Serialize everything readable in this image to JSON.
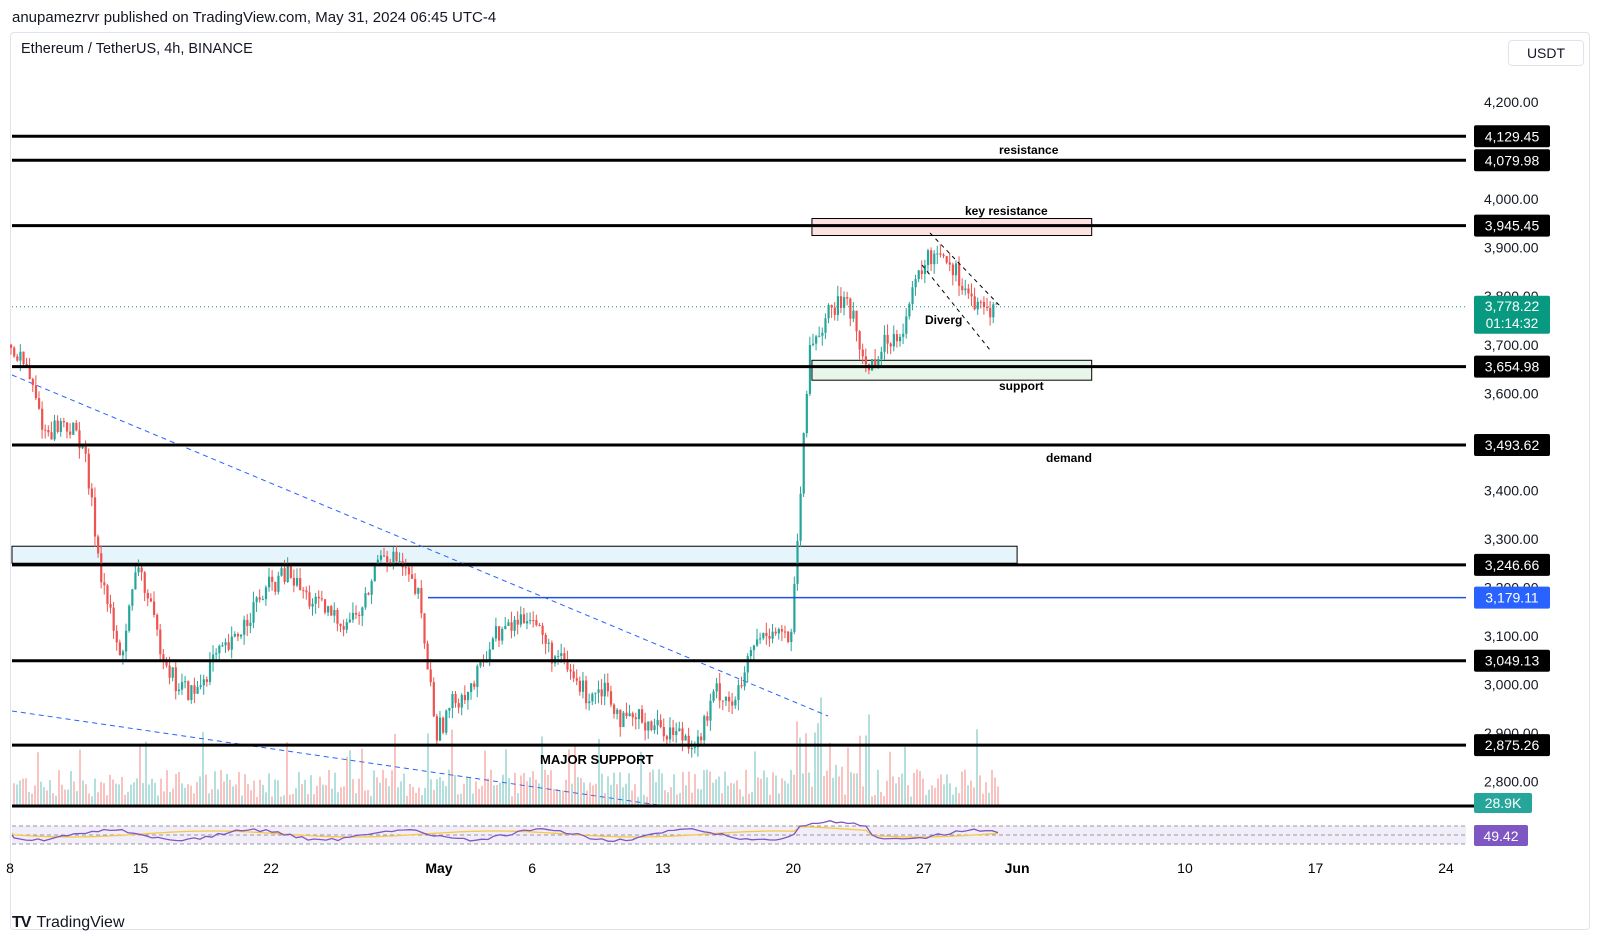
{
  "header": {
    "published_line": "anupamezrvr published on TradingView.com, May 31, 2024 06:45 UTC-4",
    "symbol_line": "Ethereum / TetherUS, 4h, BINANCE",
    "currency_button": "USDT"
  },
  "footer": {
    "brand": "TradingView",
    "logo_icon": "tradingview-logo-icon"
  },
  "colors": {
    "up": "#26a69a",
    "down": "#ef5350",
    "line": "#000000",
    "blue_line": "#1e53e5",
    "last_price": "#089981",
    "rsi_badge": "#7e57c2"
  },
  "chart_data": {
    "type": "candlestick",
    "title": "Ethereum / TetherUS, 4h, BINANCE",
    "ylim": [
      2750,
      4300
    ],
    "y_ticks": [
      "4,200.00",
      "4,000.00",
      "3,900.00",
      "3,800.00",
      "3,700.00",
      "3,600.00",
      "3,400.00",
      "3,300.00",
      "3,200.00",
      "3,100.00",
      "3,000.00",
      "2,900.00",
      "2,800.00"
    ],
    "x_ticks": [
      "8",
      "15",
      "22",
      "May",
      "6",
      "13",
      "20",
      "27",
      "Jun",
      "10",
      "17",
      "24"
    ],
    "grid": false,
    "price_path": [
      [
        "Apr 8",
        3700
      ],
      [
        "Apr 9",
        3650
      ],
      [
        "Apr 10",
        3520
      ],
      [
        "Apr 11",
        3540
      ],
      [
        "Apr 12",
        3500
      ],
      [
        "Apr 13",
        3230
      ],
      [
        "Apr 14",
        3050
      ],
      [
        "Apr 15",
        3250
      ],
      [
        "Apr 16",
        3100
      ],
      [
        "Apr 17",
        3000
      ],
      [
        "Apr 18",
        2980
      ],
      [
        "Apr 19",
        3050
      ],
      [
        "Apr 20",
        3080
      ],
      [
        "Apr 21",
        3150
      ],
      [
        "Apr 22",
        3200
      ],
      [
        "Apr 23",
        3230
      ],
      [
        "Apr 24",
        3180
      ],
      [
        "Apr 25",
        3150
      ],
      [
        "Apr 26",
        3130
      ],
      [
        "Apr 27",
        3150
      ],
      [
        "Apr 28",
        3280
      ],
      [
        "Apr 29",
        3250
      ],
      [
        "Apr 30",
        3180
      ],
      [
        "May 1",
        2900
      ],
      [
        "May 2",
        2970
      ],
      [
        "May 3",
        3000
      ],
      [
        "May 4",
        3100
      ],
      [
        "May 5",
        3120
      ],
      [
        "May 6",
        3150
      ],
      [
        "May 7",
        3070
      ],
      [
        "May 8",
        3030
      ],
      [
        "May 9",
        2980
      ],
      [
        "May 10",
        3000
      ],
      [
        "May 11",
        2920
      ],
      [
        "May 12",
        2930
      ],
      [
        "May 13",
        2910
      ],
      [
        "May 14",
        2900
      ],
      [
        "May 15",
        2880
      ],
      [
        "May 16",
        2990
      ],
      [
        "May 17",
        2960
      ],
      [
        "May 18",
        3080
      ],
      [
        "May 19",
        3120
      ],
      [
        "May 20",
        3090
      ],
      [
        "May 21",
        3700
      ],
      [
        "May 22",
        3760
      ],
      [
        "May 23",
        3800
      ],
      [
        "May 24",
        3650
      ],
      [
        "May 25",
        3700
      ],
      [
        "May 26",
        3740
      ],
      [
        "May 27",
        3860
      ],
      [
        "May 28",
        3900
      ],
      [
        "May 29",
        3840
      ],
      [
        "May 30",
        3770
      ],
      [
        "May 31",
        3778.22
      ]
    ],
    "horizontal_levels": [
      {
        "price": 4129.45,
        "label": "4,129.45"
      },
      {
        "price": 4079.98,
        "label": "4,079.98",
        "note": "resistance"
      },
      {
        "price": 3945.45,
        "label": "3,945.45"
      },
      {
        "price": 3654.98,
        "label": "3,654.98"
      },
      {
        "price": 3493.62,
        "label": "3,493.62",
        "note": "demand"
      },
      {
        "price": 3246.66,
        "label": "3,246.66"
      },
      {
        "price": 3049.13,
        "label": "3,049.13"
      },
      {
        "price": 2875.26,
        "label": "2,875.26",
        "note": "MAJOR SUPPORT"
      }
    ],
    "blue_level": {
      "price": 3179.11,
      "label": "3,179.11"
    },
    "zones": [
      {
        "label": "key resistance",
        "top": 3960,
        "bottom": 3925,
        "fill": "#fde2e2",
        "from": "May 21",
        "to": "Jun 5"
      },
      {
        "label": "support",
        "top": 3668,
        "bottom": 3627,
        "fill": "#e8f5e9",
        "from": "May 21",
        "to": "Jun 5"
      },
      {
        "label": "",
        "top": 3285,
        "bottom": 3250,
        "fill": "#e6f4fb",
        "from": "Apr 8",
        "to": "Jun 1"
      }
    ],
    "annotation_divergence": "Diverg",
    "last_price": {
      "value": "3,778.22",
      "countdown": "01:14:32"
    },
    "volume_badge": "28.9K",
    "rsi": {
      "value": "49.42",
      "upper": 70,
      "lower": 30,
      "range": [
        0,
        100
      ]
    }
  }
}
